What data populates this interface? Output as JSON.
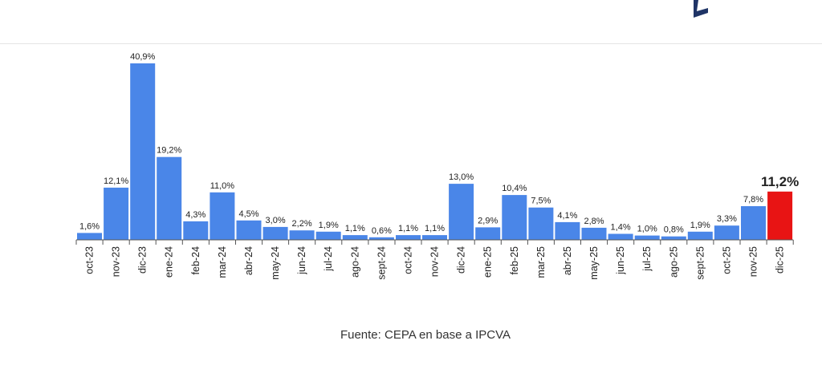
{
  "colors": {
    "bar": "#4a86e8",
    "highlight": "#e81414",
    "axis": "#555555",
    "label": "#222222"
  },
  "source_note": "Fuente: CEPA en base a IPCVA",
  "chart_data": {
    "type": "bar",
    "title": "",
    "xlabel": "",
    "ylabel": "",
    "ylim": [
      0,
      42
    ],
    "grid": false,
    "categories": [
      "oct-23",
      "nov-23",
      "dic-23",
      "ene-24",
      "feb-24",
      "mar-24",
      "abr-24",
      "may-24",
      "jun-24",
      "jul-24",
      "ago-24",
      "sept-24",
      "oct-24",
      "nov-24",
      "dic-24",
      "ene-25",
      "feb-25",
      "mar-25",
      "abr-25",
      "may-25",
      "jun-25",
      "jul-25",
      "ago-25",
      "sept-25",
      "oct-25",
      "nov-25",
      "dic-25"
    ],
    "values": [
      1.6,
      12.1,
      40.9,
      19.2,
      4.3,
      11.0,
      4.5,
      3.0,
      2.2,
      1.9,
      1.1,
      0.6,
      1.1,
      1.1,
      13.0,
      2.9,
      10.4,
      7.5,
      4.1,
      2.8,
      1.4,
      1.0,
      0.8,
      1.9,
      3.3,
      7.8,
      11.2
    ],
    "value_labels": [
      "1,6%",
      "12,1%",
      "40,9%",
      "19,2%",
      "4,3%",
      "11,0%",
      "4,5%",
      "3,0%",
      "2,2%",
      "1,9%",
      "1,1%",
      "0,6%",
      "1,1%",
      "1,1%",
      "13,0%",
      "2,9%",
      "10,4%",
      "7,5%",
      "4,1%",
      "2,8%",
      "1,4%",
      "1,0%",
      "0,8%",
      "1,9%",
      "3,3%",
      "7,8%",
      "11,2%"
    ],
    "highlight_index": 26
  }
}
